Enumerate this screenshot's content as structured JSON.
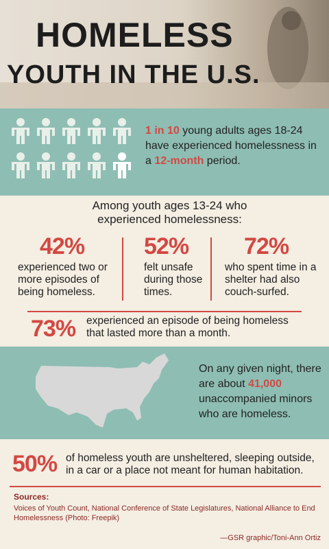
{
  "header": {
    "title_line1": "HOMELESS",
    "title_line2": "YOUTH IN THE U.S."
  },
  "fact_one_in_ten": {
    "highlight1": "1 in 10",
    "text1": " young adults ages 18-24 have experienced homelessness in a ",
    "highlight2": "12-month",
    "text2": " period."
  },
  "youth_section": {
    "intro": "Among youth ages 13-24 who experienced homelessness:",
    "stats": [
      {
        "value": "42%",
        "text": "experienced two or more episodes of being homeless."
      },
      {
        "value": "52%",
        "text": "felt unsafe during those times."
      },
      {
        "value": "72%",
        "text": "who spent time in a shelter had also couch-surfed."
      }
    ],
    "long_episode": {
      "value": "73%",
      "text": "experienced an episode of being homeless that lasted more than a month."
    }
  },
  "night_fact": {
    "text1": "On any given night, there are about ",
    "highlight": "41,000",
    "text2": " unaccompanied minors who are homeless."
  },
  "unsheltered": {
    "value": "50%",
    "text": "of homeless youth are unsheltered, sleeping outside, in a car or a place not meant for human habitation."
  },
  "sources": {
    "label": "Sources:",
    "text": "Voices of Youth Count, National Conference of State Legislatures, National Alliance to End Homelessness (Photo: Freepik)"
  },
  "credit": "—GSR graphic/Toni-Ann Ortiz"
}
